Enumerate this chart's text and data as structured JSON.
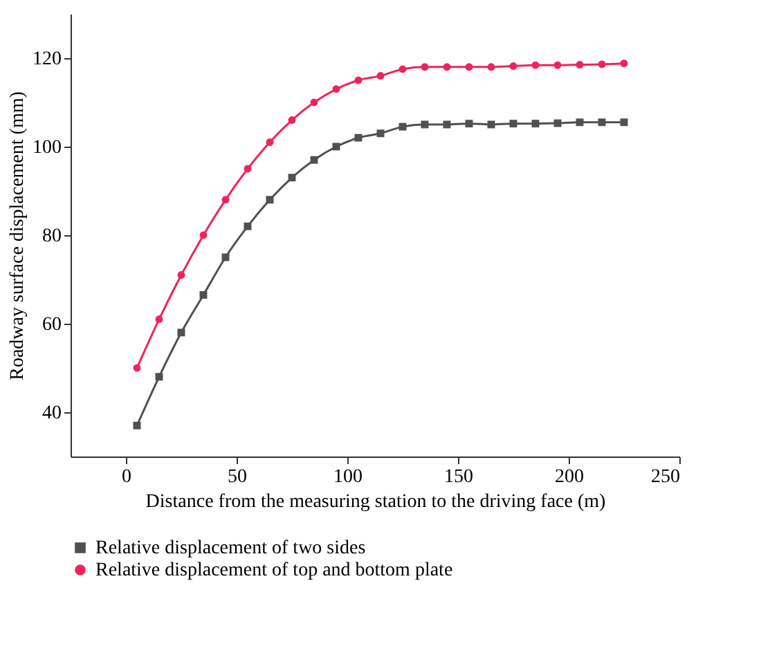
{
  "chart_data": {
    "type": "line",
    "xlabel": "Distance from the measuring station to the driving face (m)",
    "ylabel": "Roadway surface displacement (mm)",
    "x": [
      5,
      15,
      25,
      35,
      45,
      55,
      65,
      75,
      85,
      95,
      105,
      115,
      125,
      135,
      145,
      155,
      165,
      175,
      185,
      195,
      205,
      215,
      225
    ],
    "series": [
      {
        "name": "Relative displacement of two sides",
        "color": "#4d5152",
        "marker": "square",
        "values": [
          37,
          48,
          58,
          66.5,
          75,
          82,
          88,
          93,
          97,
          100,
          102,
          103,
          104.5,
          105,
          105,
          105.2,
          105,
          105.2,
          105.2,
          105.3,
          105.5,
          105.5,
          105.5
        ]
      },
      {
        "name": "Relative displacement of top and bottom plate",
        "color": "#f0245a",
        "marker": "circle",
        "values": [
          50,
          61,
          71,
          80,
          88,
          95,
          101,
          106,
          110,
          113,
          115,
          116,
          117.5,
          118,
          118,
          118,
          118,
          118.2,
          118.4,
          118.4,
          118.5,
          118.6,
          118.8
        ]
      }
    ],
    "xlim": [
      -25,
      250
    ],
    "xticks": [
      0,
      50,
      100,
      150,
      200,
      250
    ],
    "ylim": [
      30,
      130
    ],
    "yticks": [
      40,
      60,
      80,
      100,
      120
    ],
    "grid": false,
    "legend": "bottom",
    "line_style": "solid"
  }
}
